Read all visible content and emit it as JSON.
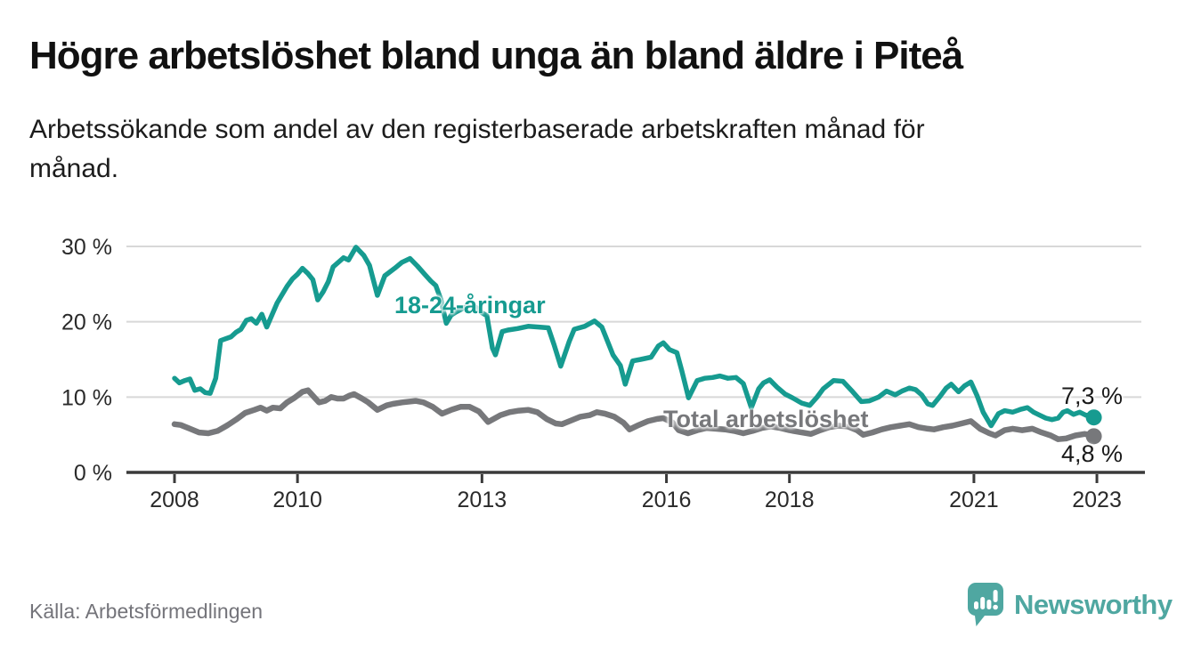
{
  "header": {
    "title": "Högre arbetslöshet bland unga än bland äldre i Piteå",
    "subtitle_lines": [
      "Arbetssökande som andel av den registerbaserade arbetskraften månad för",
      "månad."
    ]
  },
  "chart_data": {
    "type": "line",
    "title": "Högre arbetslöshet bland unga än bland äldre i Piteå",
    "subtitle": "Arbetssökande som andel av den registerbaserade arbetskraften månad för månad.",
    "unit": "%",
    "grid": true,
    "legend_position": "inline-labels",
    "x_axis": {
      "tick_years": [
        2008,
        2010,
        2013,
        2016,
        2018,
        2021,
        2023
      ],
      "tick_labels": [
        "2008",
        "2010",
        "2013",
        "2016",
        "2018",
        "2021",
        "2023"
      ],
      "range": [
        2007.9,
        2023.75
      ]
    },
    "y_axis": {
      "ticks": [
        0,
        10,
        20,
        30
      ],
      "tick_labels": [
        "0 %",
        "10 %",
        "20 %",
        "30 %"
      ],
      "range": [
        0,
        32
      ]
    },
    "series": [
      {
        "name": "18-24-åringar",
        "color": "#169b90",
        "latest_value": 7.3,
        "latest_value_label": "7,3 %",
        "points": [
          [
            2008.0,
            12.5
          ],
          [
            2008.08,
            11.9
          ],
          [
            2008.17,
            12.2
          ],
          [
            2008.25,
            12.4
          ],
          [
            2008.33,
            10.9
          ],
          [
            2008.42,
            11.1
          ],
          [
            2008.5,
            10.6
          ],
          [
            2008.58,
            10.5
          ],
          [
            2008.67,
            12.5
          ],
          [
            2008.75,
            17.5
          ],
          [
            2008.92,
            18.0
          ],
          [
            2009.0,
            18.6
          ],
          [
            2009.08,
            19.0
          ],
          [
            2009.17,
            20.2
          ],
          [
            2009.25,
            20.4
          ],
          [
            2009.33,
            19.8
          ],
          [
            2009.42,
            21.0
          ],
          [
            2009.5,
            19.3
          ],
          [
            2009.67,
            22.5
          ],
          [
            2009.83,
            24.7
          ],
          [
            2009.92,
            25.7
          ],
          [
            2010.0,
            26.3
          ],
          [
            2010.08,
            27.1
          ],
          [
            2010.17,
            26.4
          ],
          [
            2010.25,
            25.6
          ],
          [
            2010.33,
            22.9
          ],
          [
            2010.42,
            24.0
          ],
          [
            2010.5,
            25.3
          ],
          [
            2010.58,
            27.3
          ],
          [
            2010.75,
            28.5
          ],
          [
            2010.83,
            28.2
          ],
          [
            2010.95,
            29.9
          ],
          [
            2011.08,
            28.8
          ],
          [
            2011.17,
            27.5
          ],
          [
            2011.3,
            23.5
          ],
          [
            2011.42,
            26.1
          ],
          [
            2011.58,
            27.1
          ],
          [
            2011.7,
            27.9
          ],
          [
            2011.83,
            28.4
          ],
          [
            2011.95,
            27.4
          ],
          [
            2012.08,
            26.2
          ],
          [
            2012.17,
            25.4
          ],
          [
            2012.25,
            24.8
          ],
          [
            2012.33,
            23.0
          ],
          [
            2012.42,
            19.8
          ],
          [
            2012.5,
            20.9
          ],
          [
            2012.58,
            21.3
          ],
          [
            2012.7,
            21.8
          ],
          [
            2012.83,
            22.3
          ],
          [
            2012.92,
            21.8
          ],
          [
            2013.0,
            21.2
          ],
          [
            2013.08,
            20.8
          ],
          [
            2013.17,
            16.5
          ],
          [
            2013.22,
            15.6
          ],
          [
            2013.33,
            18.7
          ],
          [
            2013.42,
            18.9
          ],
          [
            2013.58,
            19.1
          ],
          [
            2013.75,
            19.4
          ],
          [
            2013.92,
            19.3
          ],
          [
            2014.08,
            19.2
          ],
          [
            2014.17,
            17.0
          ],
          [
            2014.28,
            14.1
          ],
          [
            2014.42,
            17.4
          ],
          [
            2014.5,
            19.0
          ],
          [
            2014.67,
            19.4
          ],
          [
            2014.83,
            20.1
          ],
          [
            2014.95,
            19.3
          ],
          [
            2015.13,
            15.6
          ],
          [
            2015.25,
            14.2
          ],
          [
            2015.33,
            11.7
          ],
          [
            2015.45,
            14.8
          ],
          [
            2015.58,
            15.0
          ],
          [
            2015.75,
            15.3
          ],
          [
            2015.87,
            16.8
          ],
          [
            2015.95,
            17.2
          ],
          [
            2016.05,
            16.3
          ],
          [
            2016.17,
            15.9
          ],
          [
            2016.25,
            13.5
          ],
          [
            2016.36,
            9.9
          ],
          [
            2016.5,
            12.2
          ],
          [
            2016.62,
            12.5
          ],
          [
            2016.75,
            12.6
          ],
          [
            2016.87,
            12.8
          ],
          [
            2017.0,
            12.5
          ],
          [
            2017.13,
            12.6
          ],
          [
            2017.25,
            11.8
          ],
          [
            2017.38,
            8.6
          ],
          [
            2017.5,
            11.1
          ],
          [
            2017.58,
            11.9
          ],
          [
            2017.68,
            12.3
          ],
          [
            2017.8,
            11.3
          ],
          [
            2017.93,
            10.4
          ],
          [
            2018.05,
            9.9
          ],
          [
            2018.2,
            9.2
          ],
          [
            2018.33,
            8.9
          ],
          [
            2018.45,
            10.0
          ],
          [
            2018.55,
            11.1
          ],
          [
            2018.72,
            12.2
          ],
          [
            2018.87,
            12.1
          ],
          [
            2019.03,
            10.7
          ],
          [
            2019.17,
            9.4
          ],
          [
            2019.3,
            9.5
          ],
          [
            2019.45,
            10.0
          ],
          [
            2019.58,
            10.8
          ],
          [
            2019.72,
            10.3
          ],
          [
            2019.83,
            10.8
          ],
          [
            2019.95,
            11.2
          ],
          [
            2020.05,
            11.0
          ],
          [
            2020.15,
            10.3
          ],
          [
            2020.25,
            9.1
          ],
          [
            2020.33,
            8.9
          ],
          [
            2020.45,
            10.1
          ],
          [
            2020.55,
            11.2
          ],
          [
            2020.63,
            11.7
          ],
          [
            2020.75,
            10.7
          ],
          [
            2020.85,
            11.5
          ],
          [
            2020.95,
            12.0
          ],
          [
            2021.05,
            10.2
          ],
          [
            2021.15,
            8.0
          ],
          [
            2021.28,
            6.2
          ],
          [
            2021.4,
            7.8
          ],
          [
            2021.5,
            8.2
          ],
          [
            2021.63,
            8.0
          ],
          [
            2021.77,
            8.4
          ],
          [
            2021.87,
            8.6
          ],
          [
            2021.97,
            8.0
          ],
          [
            2022.07,
            7.6
          ],
          [
            2022.17,
            7.2
          ],
          [
            2022.27,
            7.0
          ],
          [
            2022.37,
            7.2
          ],
          [
            2022.45,
            8.0
          ],
          [
            2022.52,
            8.2
          ],
          [
            2022.62,
            7.7
          ],
          [
            2022.72,
            8.0
          ],
          [
            2022.82,
            7.6
          ],
          [
            2022.88,
            7.6
          ],
          [
            2022.95,
            7.3
          ]
        ]
      },
      {
        "name": "Total arbetslöshet",
        "color": "#77787b",
        "latest_value": 4.8,
        "latest_value_label": "4,8 %",
        "points": [
          [
            2008.0,
            6.4
          ],
          [
            2008.1,
            6.3
          ],
          [
            2008.25,
            5.8
          ],
          [
            2008.4,
            5.3
          ],
          [
            2008.55,
            5.2
          ],
          [
            2008.7,
            5.5
          ],
          [
            2008.85,
            6.2
          ],
          [
            2009.0,
            7.0
          ],
          [
            2009.15,
            7.9
          ],
          [
            2009.3,
            8.3
          ],
          [
            2009.4,
            8.6
          ],
          [
            2009.5,
            8.2
          ],
          [
            2009.6,
            8.6
          ],
          [
            2009.72,
            8.5
          ],
          [
            2009.83,
            9.3
          ],
          [
            2009.95,
            9.9
          ],
          [
            2010.08,
            10.7
          ],
          [
            2010.17,
            10.9
          ],
          [
            2010.27,
            10.0
          ],
          [
            2010.35,
            9.3
          ],
          [
            2010.45,
            9.5
          ],
          [
            2010.55,
            10.0
          ],
          [
            2010.65,
            9.8
          ],
          [
            2010.75,
            9.8
          ],
          [
            2010.85,
            10.2
          ],
          [
            2010.92,
            10.4
          ],
          [
            2011.05,
            9.8
          ],
          [
            2011.15,
            9.3
          ],
          [
            2011.3,
            8.3
          ],
          [
            2011.45,
            8.9
          ],
          [
            2011.55,
            9.1
          ],
          [
            2011.7,
            9.3
          ],
          [
            2011.92,
            9.5
          ],
          [
            2012.05,
            9.3
          ],
          [
            2012.2,
            8.7
          ],
          [
            2012.35,
            7.8
          ],
          [
            2012.5,
            8.3
          ],
          [
            2012.65,
            8.7
          ],
          [
            2012.8,
            8.7
          ],
          [
            2012.95,
            8.1
          ],
          [
            2013.1,
            6.7
          ],
          [
            2013.3,
            7.6
          ],
          [
            2013.45,
            8.0
          ],
          [
            2013.6,
            8.2
          ],
          [
            2013.75,
            8.3
          ],
          [
            2013.9,
            8.0
          ],
          [
            2014.05,
            7.1
          ],
          [
            2014.2,
            6.5
          ],
          [
            2014.3,
            6.4
          ],
          [
            2014.45,
            6.9
          ],
          [
            2014.6,
            7.4
          ],
          [
            2014.75,
            7.6
          ],
          [
            2014.87,
            8.0
          ],
          [
            2015.0,
            7.8
          ],
          [
            2015.15,
            7.4
          ],
          [
            2015.3,
            6.6
          ],
          [
            2015.4,
            5.7
          ],
          [
            2015.55,
            6.3
          ],
          [
            2015.7,
            6.8
          ],
          [
            2015.85,
            7.1
          ],
          [
            2015.95,
            7.2
          ],
          [
            2016.1,
            6.6
          ],
          [
            2016.2,
            5.6
          ],
          [
            2016.35,
            5.2
          ],
          [
            2016.5,
            5.6
          ],
          [
            2016.65,
            5.9
          ],
          [
            2016.8,
            5.8
          ],
          [
            2016.95,
            5.7
          ],
          [
            2017.1,
            5.5
          ],
          [
            2017.25,
            5.2
          ],
          [
            2017.4,
            5.5
          ],
          [
            2017.55,
            5.9
          ],
          [
            2017.7,
            6.1
          ],
          [
            2017.85,
            5.9
          ],
          [
            2018.0,
            5.6
          ],
          [
            2018.2,
            5.3
          ],
          [
            2018.35,
            5.1
          ],
          [
            2018.5,
            5.6
          ],
          [
            2018.65,
            6.0
          ],
          [
            2018.8,
            6.2
          ],
          [
            2018.95,
            6.1
          ],
          [
            2019.1,
            5.6
          ],
          [
            2019.2,
            5.0
          ],
          [
            2019.35,
            5.3
          ],
          [
            2019.5,
            5.7
          ],
          [
            2019.65,
            6.0
          ],
          [
            2019.8,
            6.2
          ],
          [
            2019.95,
            6.4
          ],
          [
            2020.1,
            6.0
          ],
          [
            2020.25,
            5.8
          ],
          [
            2020.35,
            5.7
          ],
          [
            2020.5,
            6.0
          ],
          [
            2020.65,
            6.2
          ],
          [
            2020.8,
            6.5
          ],
          [
            2020.95,
            6.8
          ],
          [
            2021.1,
            5.8
          ],
          [
            2021.25,
            5.2
          ],
          [
            2021.35,
            4.9
          ],
          [
            2021.5,
            5.6
          ],
          [
            2021.63,
            5.8
          ],
          [
            2021.78,
            5.6
          ],
          [
            2021.95,
            5.8
          ],
          [
            2022.1,
            5.3
          ],
          [
            2022.25,
            4.9
          ],
          [
            2022.37,
            4.4
          ],
          [
            2022.5,
            4.5
          ],
          [
            2022.65,
            4.9
          ],
          [
            2022.8,
            5.1
          ],
          [
            2022.88,
            5.0
          ],
          [
            2022.95,
            4.8
          ]
        ]
      }
    ]
  },
  "footer": {
    "source": "Källa: Arbetsförmedlingen",
    "brand": {
      "name": "Newsworthy",
      "color": "#4fa7a1",
      "icon": "speech-bubble-bar-chart-icon"
    }
  }
}
